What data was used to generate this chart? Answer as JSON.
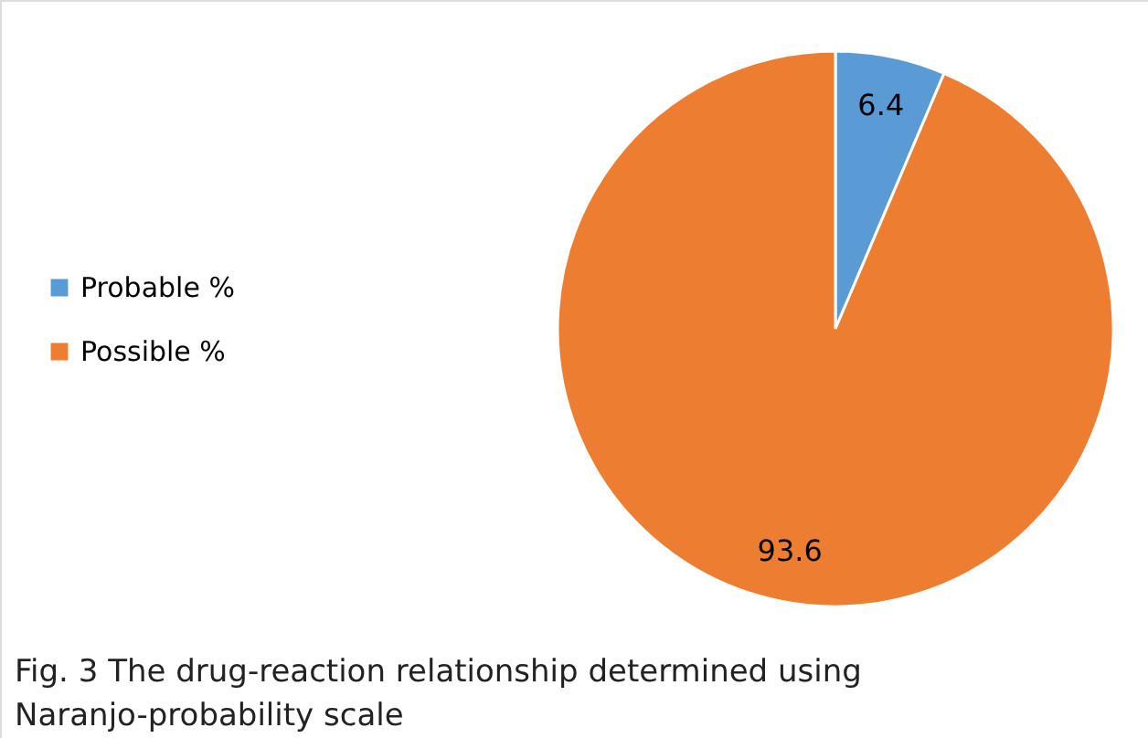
{
  "chart_data": {
    "type": "pie",
    "categories": [
      "Probable  %",
      "Possible  %"
    ],
    "values": [
      6.4,
      93.6
    ],
    "colors": [
      "#5b9bd5",
      "#ed7d31"
    ],
    "data_labels": true,
    "legend": "left",
    "annotations": [
      "Fig. 3 The drug-reaction relationship determined using Naranjo-probability scale"
    ]
  }
}
